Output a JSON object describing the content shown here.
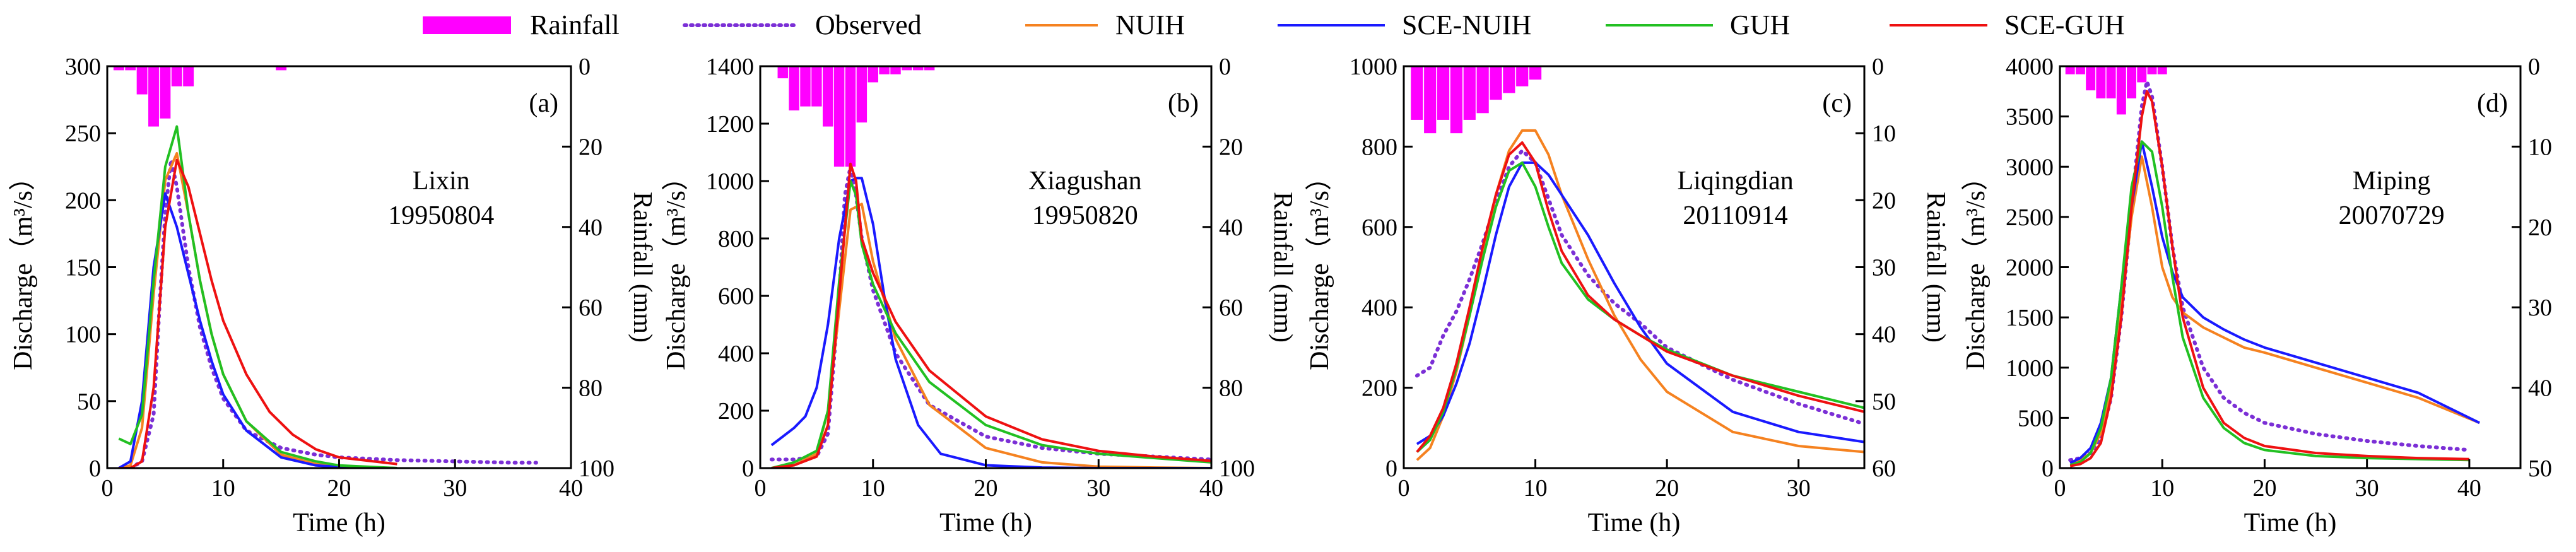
{
  "legend": [
    {
      "key": "rainfall",
      "label": "Rainfall",
      "color": "#ff00ff",
      "kind": "bar"
    },
    {
      "key": "observed",
      "label": "Observed",
      "color": "#7b2fd6",
      "kind": "dotted"
    },
    {
      "key": "nuih",
      "label": "NUIH",
      "color": "#f58220",
      "kind": "line"
    },
    {
      "key": "sce_nuih",
      "label": "SCE-NUIH",
      "color": "#1a1aff",
      "kind": "line"
    },
    {
      "key": "guh",
      "label": "GUH",
      "color": "#22c022",
      "kind": "line"
    },
    {
      "key": "sce_guh",
      "label": "SCE-GUH",
      "color": "#ee1111",
      "kind": "line"
    }
  ],
  "chart_data": [
    {
      "type": "line",
      "panel": "(a)",
      "station": "Lixin",
      "event": "19950804",
      "xlabel": "Time (h)",
      "ylabel": "Discharge（m³/s）",
      "y2label": "Rainfall (mm)",
      "xlim": [
        0,
        40
      ],
      "ylim": [
        0,
        300
      ],
      "y2lim": [
        0,
        100
      ],
      "xticks": [
        "0",
        "10",
        "20",
        "30",
        "40"
      ],
      "yticks": [
        "0",
        "50",
        "100",
        "150",
        "200",
        "250",
        "300"
      ],
      "y2ticks": [
        "0",
        "20",
        "40",
        "60",
        "80",
        "100"
      ],
      "rainfall": {
        "x": [
          1,
          2,
          3,
          4,
          5,
          6,
          7,
          15
        ],
        "values": [
          1,
          1,
          7,
          15,
          13,
          5,
          5,
          1
        ]
      },
      "series": [
        {
          "key": "observed",
          "x": [
            2,
            3,
            4,
            4.5,
            5,
            5.5,
            6,
            7,
            8,
            9,
            10,
            12,
            15,
            18,
            20,
            25,
            30,
            35,
            37
          ],
          "y": [
            0,
            5,
            40,
            120,
            190,
            230,
            210,
            150,
            105,
            75,
            52,
            28,
            15,
            10,
            8,
            6,
            5,
            4,
            4
          ]
        },
        {
          "key": "nuih",
          "x": [
            1,
            2,
            3,
            4,
            5,
            6,
            7,
            8,
            9,
            10,
            12,
            15,
            18,
            20,
            25
          ],
          "y": [
            0,
            2,
            30,
            130,
            215,
            235,
            190,
            140,
            100,
            70,
            35,
            10,
            3,
            1,
            0
          ]
        },
        {
          "key": "sce_nuih",
          "x": [
            1,
            2,
            3,
            4,
            5,
            6,
            7,
            8,
            9,
            10,
            12,
            15,
            18,
            20,
            25
          ],
          "y": [
            0,
            5,
            50,
            150,
            205,
            180,
            145,
            110,
            80,
            55,
            28,
            8,
            2,
            1,
            0
          ]
        },
        {
          "key": "guh",
          "x": [
            1,
            2,
            3,
            4,
            5,
            5.5,
            6,
            7,
            8,
            9,
            10,
            12,
            15,
            18,
            20,
            25
          ],
          "y": [
            22,
            18,
            40,
            140,
            225,
            240,
            255,
            190,
            140,
            100,
            70,
            35,
            12,
            5,
            2,
            0
          ]
        },
        {
          "key": "sce_guh",
          "x": [
            1,
            2,
            3,
            4,
            5,
            6,
            7,
            8,
            9,
            10,
            12,
            14,
            16,
            18,
            20,
            25
          ],
          "y": [
            0,
            0,
            5,
            60,
            180,
            230,
            210,
            175,
            140,
            110,
            70,
            42,
            25,
            14,
            8,
            3
          ]
        }
      ]
    },
    {
      "type": "line",
      "panel": "(b)",
      "station": "Xiagushan",
      "event": "19950820",
      "xlabel": "Time (h)",
      "ylabel": "Discharge（m³/s）",
      "y2label": "Rainfall (mm)",
      "xlim": [
        0,
        40
      ],
      "ylim": [
        0,
        1400
      ],
      "y2lim": [
        0,
        100
      ],
      "xticks": [
        "0",
        "10",
        "20",
        "30",
        "40"
      ],
      "yticks": [
        "0",
        "200",
        "400",
        "600",
        "800",
        "1000",
        "1200",
        "1400"
      ],
      "y2ticks": [
        "0",
        "20",
        "40",
        "60",
        "80",
        "100"
      ],
      "rainfall": {
        "x": [
          2,
          3,
          4,
          5,
          6,
          7,
          8,
          9,
          10,
          11,
          12,
          13,
          14,
          15
        ],
        "values": [
          3,
          11,
          10,
          10,
          15,
          25,
          25,
          14,
          4,
          2,
          2,
          1,
          1,
          1
        ]
      },
      "series": [
        {
          "key": "observed",
          "x": [
            1,
            3,
            5,
            6,
            7,
            7.5,
            8,
            8.5,
            9,
            10,
            12,
            15,
            20,
            25,
            30,
            35,
            40
          ],
          "y": [
            30,
            30,
            40,
            120,
            600,
            950,
            1050,
            950,
            800,
            620,
            400,
            220,
            110,
            70,
            50,
            40,
            30
          ]
        },
        {
          "key": "nuih",
          "x": [
            1,
            3,
            5,
            6,
            7,
            8,
            9,
            10,
            12,
            15,
            20,
            25,
            30,
            35,
            40
          ],
          "y": [
            0,
            10,
            50,
            200,
            550,
            900,
            920,
            720,
            450,
            220,
            70,
            20,
            5,
            2,
            0
          ]
        },
        {
          "key": "sce_nuih",
          "x": [
            1,
            2,
            3,
            4,
            5,
            6,
            7,
            8,
            8.5,
            9,
            10,
            11,
            12,
            14,
            16,
            20,
            25,
            30,
            40
          ],
          "y": [
            80,
            110,
            140,
            180,
            280,
            500,
            800,
            1000,
            1010,
            1010,
            850,
            600,
            380,
            150,
            50,
            10,
            2,
            0,
            0
          ]
        },
        {
          "key": "guh",
          "x": [
            1,
            3,
            5,
            6,
            7,
            8,
            8.5,
            9,
            10,
            12,
            15,
            20,
            25,
            30,
            35,
            40
          ],
          "y": [
            0,
            20,
            60,
            200,
            650,
            1000,
            950,
            780,
            640,
            470,
            300,
            150,
            80,
            50,
            35,
            20
          ]
        },
        {
          "key": "sce_guh",
          "x": [
            1,
            3,
            5,
            6,
            7,
            8,
            8.5,
            9,
            10,
            12,
            15,
            20,
            25,
            30,
            35,
            40
          ],
          "y": [
            0,
            10,
            40,
            150,
            600,
            1060,
            1000,
            800,
            680,
            510,
            340,
            180,
            100,
            60,
            40,
            25
          ]
        }
      ]
    },
    {
      "type": "line",
      "panel": "(c)",
      "station": "Liqingdian",
      "event": "20110914",
      "xlabel": "Time (h)",
      "ylabel": "Discharge（m³/s）",
      "y2label": "Rainfall (mm)",
      "xlim": [
        0,
        35
      ],
      "ylim": [
        0,
        1000
      ],
      "y2lim": [
        0,
        60
      ],
      "xticks": [
        "0",
        "10",
        "20",
        "30"
      ],
      "yticks": [
        "0",
        "200",
        "400",
        "600",
        "800",
        "1000"
      ],
      "y2ticks": [
        "0",
        "10",
        "20",
        "30",
        "40",
        "50",
        "60"
      ],
      "rainfall": {
        "x": [
          1,
          2,
          3,
          4,
          5,
          6,
          7,
          8,
          9,
          10
        ],
        "values": [
          8,
          10,
          8,
          10,
          8,
          7,
          5,
          4,
          3,
          2
        ]
      },
      "series": [
        {
          "key": "observed",
          "x": [
            1,
            2,
            3,
            4,
            5,
            6,
            7,
            8,
            9,
            10,
            11,
            12,
            14,
            16,
            18,
            20,
            25,
            30,
            35
          ],
          "y": [
            230,
            250,
            330,
            390,
            470,
            560,
            660,
            750,
            790,
            760,
            670,
            580,
            480,
            410,
            360,
            300,
            220,
            160,
            110
          ]
        },
        {
          "key": "nuih",
          "x": [
            1,
            2,
            3,
            4,
            5,
            6,
            7,
            8,
            9,
            10,
            11,
            12,
            14,
            16,
            18,
            20,
            25,
            30,
            35
          ],
          "y": [
            20,
            50,
            130,
            240,
            380,
            530,
            680,
            790,
            840,
            840,
            780,
            680,
            520,
            380,
            270,
            190,
            90,
            55,
            40
          ]
        },
        {
          "key": "sce_nuih",
          "x": [
            1,
            2,
            3,
            4,
            5,
            6,
            7,
            8,
            9,
            10,
            11,
            12,
            14,
            16,
            18,
            20,
            25,
            30,
            35
          ],
          "y": [
            60,
            80,
            130,
            210,
            310,
            440,
            580,
            700,
            760,
            760,
            730,
            680,
            580,
            460,
            350,
            260,
            140,
            90,
            65
          ]
        },
        {
          "key": "guh",
          "x": [
            1,
            2,
            3,
            4,
            5,
            6,
            7,
            8,
            9,
            10,
            11,
            12,
            14,
            16,
            18,
            20,
            25,
            30,
            35
          ],
          "y": [
            40,
            70,
            140,
            250,
            380,
            520,
            650,
            740,
            760,
            700,
            600,
            510,
            420,
            370,
            330,
            295,
            230,
            190,
            150
          ]
        },
        {
          "key": "sce_guh",
          "x": [
            1,
            2,
            3,
            4,
            5,
            6,
            7,
            8,
            9,
            10,
            11,
            12,
            14,
            16,
            18,
            20,
            25,
            30,
            35
          ],
          "y": [
            40,
            80,
            150,
            260,
            400,
            550,
            680,
            780,
            810,
            760,
            640,
            540,
            430,
            370,
            330,
            290,
            230,
            180,
            140
          ]
        }
      ]
    },
    {
      "type": "line",
      "panel": "(d)",
      "station": "Miping",
      "event": "20070729",
      "xlabel": "Time (h)",
      "ylabel": "Discharge（m³/s）",
      "y2label": "Rainfall (mm)",
      "xlim": [
        0,
        45
      ],
      "ylim": [
        0,
        4000
      ],
      "y2lim": [
        0,
        50
      ],
      "xticks": [
        "0",
        "10",
        "20",
        "30",
        "40"
      ],
      "yticks": [
        "0",
        "500",
        "1000",
        "1500",
        "2000",
        "2500",
        "3000",
        "3500",
        "4000"
      ],
      "y2ticks": [
        "0",
        "10",
        "20",
        "30",
        "40",
        "50"
      ],
      "rainfall": {
        "x": [
          1,
          2,
          3,
          4,
          5,
          6,
          7,
          8,
          9,
          10
        ],
        "values": [
          1,
          1,
          3,
          4,
          4,
          6,
          4,
          2,
          1,
          1
        ]
      },
      "series": [
        {
          "key": "observed",
          "x": [
            1,
            2,
            3,
            4,
            5,
            6,
            7,
            8,
            8.5,
            9,
            10,
            11,
            12,
            14,
            16,
            18,
            20,
            25,
            30,
            35,
            40
          ],
          "y": [
            80,
            100,
            150,
            300,
            700,
            1500,
            2600,
            3600,
            3850,
            3700,
            3000,
            2200,
            1600,
            1000,
            700,
            550,
            450,
            340,
            270,
            220,
            180
          ]
        },
        {
          "key": "nuih",
          "x": [
            1,
            2,
            3,
            4,
            5,
            6,
            7,
            8,
            9,
            10,
            11,
            12,
            14,
            16,
            18,
            20,
            25,
            30,
            35,
            41
          ],
          "y": [
            50,
            80,
            150,
            350,
            800,
            1600,
            2500,
            3100,
            2600,
            2000,
            1700,
            1550,
            1400,
            1300,
            1200,
            1150,
            1000,
            850,
            700,
            450
          ]
        },
        {
          "key": "sce_nuih",
          "x": [
            1,
            2,
            3,
            4,
            5,
            6,
            7,
            8,
            9,
            10,
            11,
            12,
            14,
            16,
            18,
            20,
            25,
            30,
            35,
            41
          ],
          "y": [
            50,
            100,
            200,
            450,
            900,
            1800,
            2600,
            3250,
            2800,
            2300,
            1950,
            1700,
            1500,
            1380,
            1280,
            1200,
            1050,
            900,
            750,
            450
          ]
        },
        {
          "key": "guh",
          "x": [
            1,
            2,
            3,
            4,
            5,
            6,
            7,
            8,
            9,
            10,
            11,
            12,
            14,
            16,
            18,
            20,
            25,
            30,
            35,
            40
          ],
          "y": [
            30,
            60,
            150,
            400,
            900,
            1800,
            2800,
            3250,
            3150,
            2600,
            1900,
            1300,
            700,
            400,
            250,
            180,
            120,
            100,
            90,
            80
          ]
        },
        {
          "key": "sce_guh",
          "x": [
            1,
            2,
            3,
            4,
            5,
            6,
            7,
            8,
            8.5,
            9,
            10,
            11,
            12,
            14,
            16,
            18,
            20,
            25,
            30,
            35,
            40
          ],
          "y": [
            20,
            40,
            100,
            250,
            700,
            1500,
            2600,
            3500,
            3750,
            3650,
            3000,
            2200,
            1500,
            800,
            450,
            300,
            220,
            150,
            120,
            100,
            90
          ]
        }
      ]
    }
  ]
}
